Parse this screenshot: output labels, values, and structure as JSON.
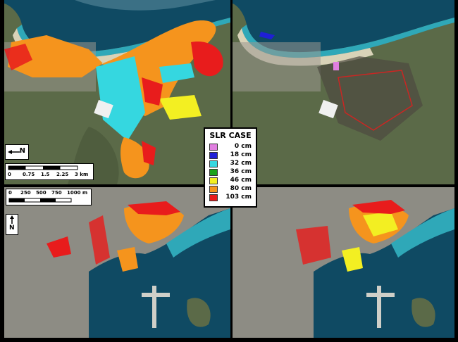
{
  "legend": {
    "title": "SLR CASE",
    "items": [
      {
        "label": "0 cm",
        "color": "#e07fe0"
      },
      {
        "label": "18 cm",
        "color": "#1f1fd6"
      },
      {
        "label": "32 cm",
        "color": "#35d7e0"
      },
      {
        "label": "36 cm",
        "color": "#1aa31a"
      },
      {
        "label": "46 cm",
        "color": "#f3ef22"
      },
      {
        "label": "80 cm",
        "color": "#f5941d"
      },
      {
        "label": "103 cm",
        "color": "#e81c1c"
      }
    ]
  },
  "scale_top": {
    "ticks": [
      "0",
      "0.75",
      "1.5",
      "2.25",
      "3 km"
    ]
  },
  "scale_bottom": {
    "ticks": [
      "0",
      "250",
      "500",
      "750",
      "1000 m"
    ]
  },
  "north_label": "N",
  "colors": {
    "sea_deep": "#0f4a63",
    "sea_shallow": "#2fa8b8",
    "land": "#5f6e4c",
    "urban": "#9a9890"
  }
}
